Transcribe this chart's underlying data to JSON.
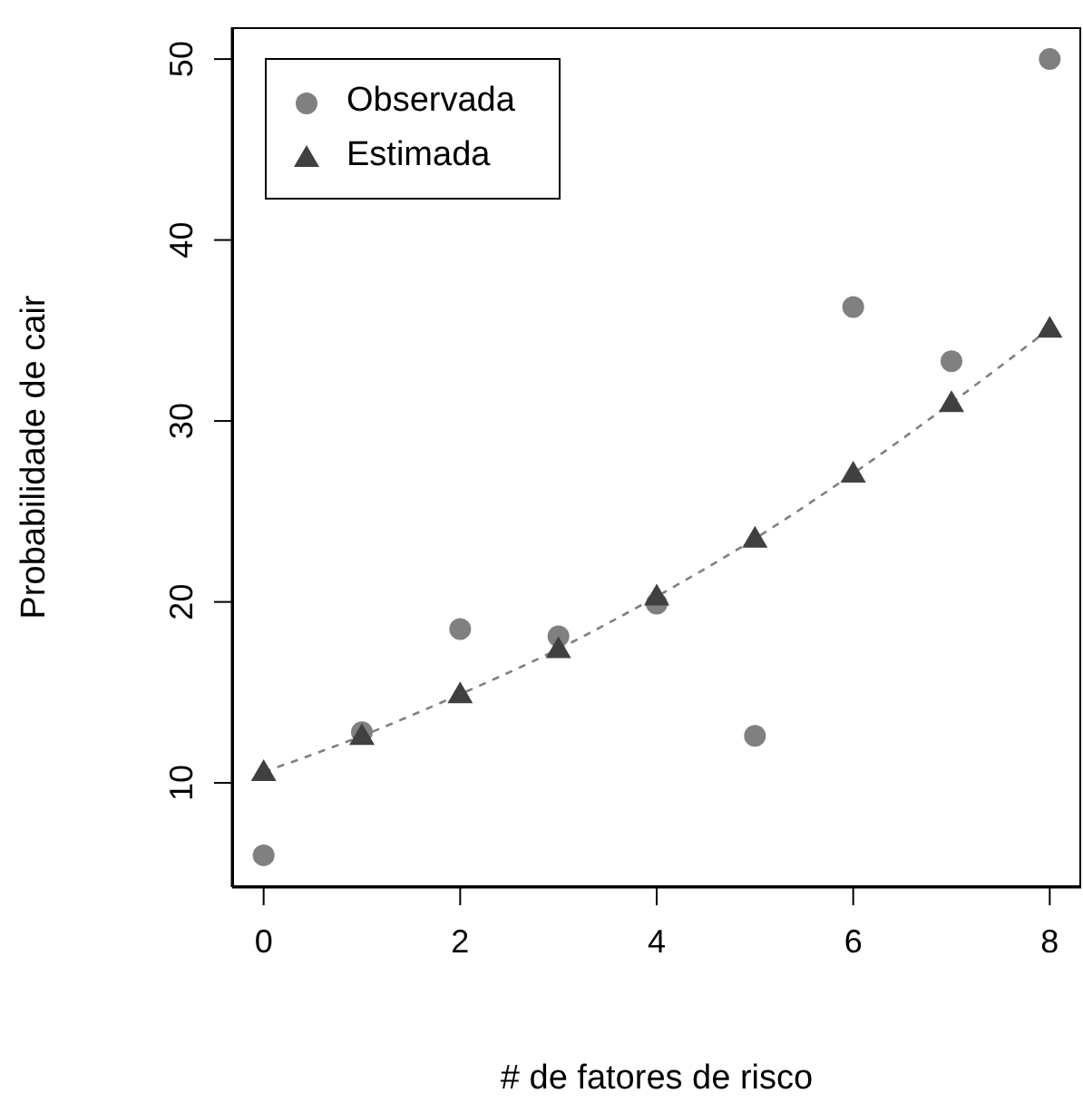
{
  "chart_data": {
    "type": "scatter",
    "xlabel": "# de fatores de risco",
    "ylabel": "Probabilidade de cair",
    "x": [
      0,
      1,
      2,
      3,
      4,
      5,
      6,
      7,
      8
    ],
    "series": [
      {
        "name": "Observada",
        "marker": "circle",
        "color": "#808080",
        "values": [
          6,
          12.8,
          18.5,
          18.1,
          19.9,
          12.6,
          36.3,
          33.3,
          50
        ]
      },
      {
        "name": "Estimada",
        "type": "scatter",
        "marker": "triangle",
        "color": "#404040",
        "values": [
          10.6,
          12.6,
          14.9,
          17.4,
          20.3,
          23.5,
          27.1,
          31.0,
          35.1
        ]
      },
      {
        "type": "line",
        "marker": "none",
        "line_style": "dashed",
        "color": "#808080",
        "values": [
          10.6,
          12.6,
          14.9,
          17.4,
          20.3,
          23.5,
          27.1,
          31.0,
          35.1
        ]
      }
    ],
    "xlim": [
      -0.32,
      8.32
    ],
    "xticks": [
      0,
      2,
      4,
      6,
      8
    ],
    "ylim": [
      4.24,
      51.76
    ],
    "yticks": [
      10,
      20,
      30,
      40,
      50
    ],
    "grid": false,
    "legend": "top left"
  }
}
